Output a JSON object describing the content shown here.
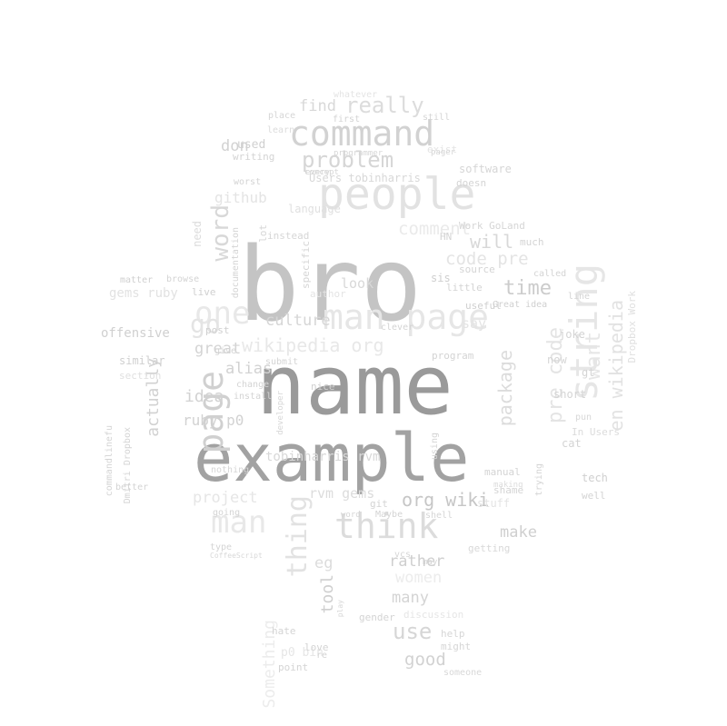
{
  "words": [
    {
      "text": "bro",
      "color": "#c4c4c4"
    },
    {
      "text": "name",
      "color": "#9a9a9a"
    },
    {
      "text": "example",
      "color": "#a2a2a2"
    },
    {
      "text": "people",
      "color": "#e2e2e2"
    },
    {
      "text": "command",
      "color": "#d2d2d2"
    },
    {
      "text": "man page",
      "color": "#e6e6e6"
    },
    {
      "text": "think",
      "color": "#dcdcdc"
    },
    {
      "text": "string",
      "color": "#e6e6e6"
    },
    {
      "text": "page",
      "color": "#d0d0d0"
    },
    {
      "text": "one",
      "color": "#e8e8e8"
    },
    {
      "text": "go",
      "color": "#e4e4e4"
    },
    {
      "text": "word",
      "color": "#d8d8d8"
    },
    {
      "text": "man",
      "color": "#e8e8e8"
    },
    {
      "text": "thing",
      "color": "#e2e2e2"
    },
    {
      "text": "problem",
      "color": "#d6d6d6"
    },
    {
      "text": "really",
      "color": "#dcdcdc"
    },
    {
      "text": "wikipedia org",
      "color": "#e8e8e8"
    },
    {
      "text": "en wikipedia",
      "color": "#e2e2e2"
    },
    {
      "text": "time",
      "color": "#cccccc"
    },
    {
      "text": "code pre",
      "color": "#e4e4e4"
    },
    {
      "text": "comment",
      "color": "#eaeaea"
    },
    {
      "text": "will",
      "color": "#d8d8d8"
    },
    {
      "text": "culture",
      "color": "#d6d6d6"
    },
    {
      "text": "pre code",
      "color": "#e4e4e4"
    },
    {
      "text": "package",
      "color": "#dcdcdc"
    },
    {
      "text": "want",
      "color": "#e6e6e6"
    },
    {
      "text": "make",
      "color": "#cfcfcf"
    },
    {
      "text": "org wiki",
      "color": "#c6c6c6"
    },
    {
      "text": "idea",
      "color": "#d2d2d2"
    },
    {
      "text": "alias",
      "color": "#d2d2d2"
    },
    {
      "text": "ruby p0",
      "color": "#d2d2d2"
    },
    {
      "text": "great",
      "color": "#d4d4d4"
    },
    {
      "text": "actually",
      "color": "#d2d2d2"
    },
    {
      "text": "project",
      "color": "#e6e6e6"
    },
    {
      "text": "rvm gems",
      "color": "#dcdcdc"
    },
    {
      "text": "tobinharris rvm",
      "color": "#d8d8d8"
    },
    {
      "text": "rather",
      "color": "#cfcfcf"
    },
    {
      "text": "tool",
      "color": "#cfcfcf"
    },
    {
      "text": "eg",
      "color": "#dcdcdc"
    },
    {
      "text": "women",
      "color": "#ececec"
    },
    {
      "text": "many",
      "color": "#d4d4d4"
    },
    {
      "text": "use",
      "color": "#d6d6d6"
    },
    {
      "text": "good",
      "color": "#d2d2d2"
    },
    {
      "text": "don",
      "color": "#d2d2d2"
    },
    {
      "text": "github",
      "color": "#e4e4e4"
    },
    {
      "text": "used",
      "color": "#d0d0d0"
    },
    {
      "text": "find",
      "color": "#d8d8d8"
    },
    {
      "text": "gems ruby",
      "color": "#e2e2e2"
    },
    {
      "text": "Something",
      "color": "#ececec"
    },
    {
      "text": "p0 bin",
      "color": "#e6e6e6"
    },
    {
      "text": "say",
      "color": "#e4e4e4"
    },
    {
      "text": "look",
      "color": "#d8d8d8"
    },
    {
      "text": "HN",
      "color": "#d4d4d4"
    },
    {
      "text": "sis",
      "color": "#cfcfcf"
    },
    {
      "text": "now",
      "color": "#d6d6d6"
    },
    {
      "text": "joke",
      "color": "#d4d4d4"
    },
    {
      "text": "gt",
      "color": "#d4d4d4"
    },
    {
      "text": "short",
      "color": "#d4d4d4"
    },
    {
      "text": "tech",
      "color": "#d0d0d0"
    },
    {
      "text": "well",
      "color": "#d4d4d4"
    },
    {
      "text": "cat",
      "color": "#d4d4d4"
    },
    {
      "text": "Dropbox Work",
      "color": "#e0e0e0"
    },
    {
      "text": "offensive",
      "color": "#d0d0d0"
    },
    {
      "text": "similar",
      "color": "#d0d0d0"
    },
    {
      "text": "matter",
      "color": "#d0d0d0"
    },
    {
      "text": "browse",
      "color": "#d4d4d4"
    },
    {
      "text": "live",
      "color": "#d0d0d0"
    },
    {
      "text": "post",
      "color": "#d0d0d0"
    },
    {
      "text": "nice",
      "color": "#d0d0d0"
    },
    {
      "text": "submit",
      "color": "#d4d4d4"
    },
    {
      "text": "Users tobinharris",
      "color": "#d8d8d8"
    },
    {
      "text": "software",
      "color": "#d6d6d6"
    },
    {
      "text": "doesn",
      "color": "#d4d4d4"
    },
    {
      "text": "Work GoLand",
      "color": "#d6d6d6"
    },
    {
      "text": "much",
      "color": "#d4d4d4"
    },
    {
      "text": "source",
      "color": "#d4d4d4"
    },
    {
      "text": "useful",
      "color": "#d0d0d0"
    },
    {
      "text": "Great idea",
      "color": "#d0d0d0"
    },
    {
      "text": "program",
      "color": "#d4d4d4"
    },
    {
      "text": "manual",
      "color": "#d4d4d4"
    },
    {
      "text": "shame",
      "color": "#d4d4d4"
    },
    {
      "text": "getting",
      "color": "#d8d8d8"
    },
    {
      "text": "help",
      "color": "#d6d6d6"
    },
    {
      "text": "might",
      "color": "#d6d6d6"
    },
    {
      "text": "someone",
      "color": "#d8d8d8"
    },
    {
      "text": "hate",
      "color": "#d4d4d4"
    },
    {
      "text": "love",
      "color": "#d4d4d4"
    },
    {
      "text": "point",
      "color": "#d4d4d4"
    },
    {
      "text": "re",
      "color": "#d4d4d4"
    },
    {
      "text": "documentation",
      "color": "#d4d4d4"
    },
    {
      "text": "need",
      "color": "#dcdcdc"
    },
    {
      "text": "lot",
      "color": "#d6d6d6"
    },
    {
      "text": "instead",
      "color": "#d6d6d6"
    },
    {
      "text": "language",
      "color": "#e0e0e0"
    },
    {
      "text": "worst",
      "color": "#d4d4d4"
    },
    {
      "text": "writing",
      "color": "#d4d4d4"
    },
    {
      "text": "learn",
      "color": "#dcdcdc"
    },
    {
      "text": "place",
      "color": "#d6d6d6"
    },
    {
      "text": "first",
      "color": "#d4d4d4"
    },
    {
      "text": "whatever",
      "color": "#e4e4e4"
    },
    {
      "text": "still",
      "color": "#d6d6d6"
    },
    {
      "text": "exist",
      "color": "#e4e4e4"
    },
    {
      "text": "pager",
      "color": "#d6d6d6"
    },
    {
      "text": "specific",
      "color": "#d6d6d6"
    },
    {
      "text": "every",
      "color": "#d6d6d6"
    },
    {
      "text": "concept",
      "color": "#d6d6d6"
    },
    {
      "text": "programmer",
      "color": "#d6d6d6"
    },
    {
      "text": "author",
      "color": "#e4e4e4"
    },
    {
      "text": "little",
      "color": "#d4d4d4"
    },
    {
      "text": "clever",
      "color": "#d4d4d4"
    },
    {
      "text": "called",
      "color": "#d4d4d4"
    },
    {
      "text": "line",
      "color": "#d4d4d4"
    },
    {
      "text": "pun",
      "color": "#d8d8d8"
    },
    {
      "text": "give",
      "color": "#d4d4d4"
    },
    {
      "text": "change",
      "color": "#d4d4d4"
    },
    {
      "text": "install",
      "color": "#d4d4d4"
    },
    {
      "text": "section",
      "color": "#e0e0e0"
    },
    {
      "text": "commandlinefu",
      "color": "#d4d4d4"
    },
    {
      "text": "Dmitri Dropbox",
      "color": "#d4d4d4"
    },
    {
      "text": "better",
      "color": "#d4d4d4"
    },
    {
      "text": "nothing",
      "color": "#d6d6d6"
    },
    {
      "text": "going",
      "color": "#d4d4d4"
    },
    {
      "text": "type",
      "color": "#d4d4d4"
    },
    {
      "text": "CoffeeScript",
      "color": "#d8d8d8"
    },
    {
      "text": "gender",
      "color": "#d4d4d4"
    },
    {
      "text": "git",
      "color": "#d4d4d4"
    },
    {
      "text": "Maybe",
      "color": "#d4d4d4"
    },
    {
      "text": "vcs",
      "color": "#d6d6d6"
    },
    {
      "text": "discussion",
      "color": "#e6e6e6"
    },
    {
      "text": "using",
      "color": "#d4d4d4"
    },
    {
      "text": "stuff",
      "color": "#e4e4e4"
    },
    {
      "text": "In Users",
      "color": "#dcdcdc"
    },
    {
      "text": "trying",
      "color": "#d4d4d4"
    },
    {
      "text": "play",
      "color": "#d6d6d6"
    },
    {
      "text": "word",
      "color": "#d6d6d6"
    },
    {
      "text": "shell",
      "color": "#d6d6d6"
    },
    {
      "text": "may",
      "color": "#d6d6d6"
    },
    {
      "text": "making",
      "color": "#dcdcdc"
    },
    {
      "text": "developer",
      "color": "#d6d6d6"
    },
    {
      "text": "looking",
      "color": "#d6d6d6"
    }
  ]
}
